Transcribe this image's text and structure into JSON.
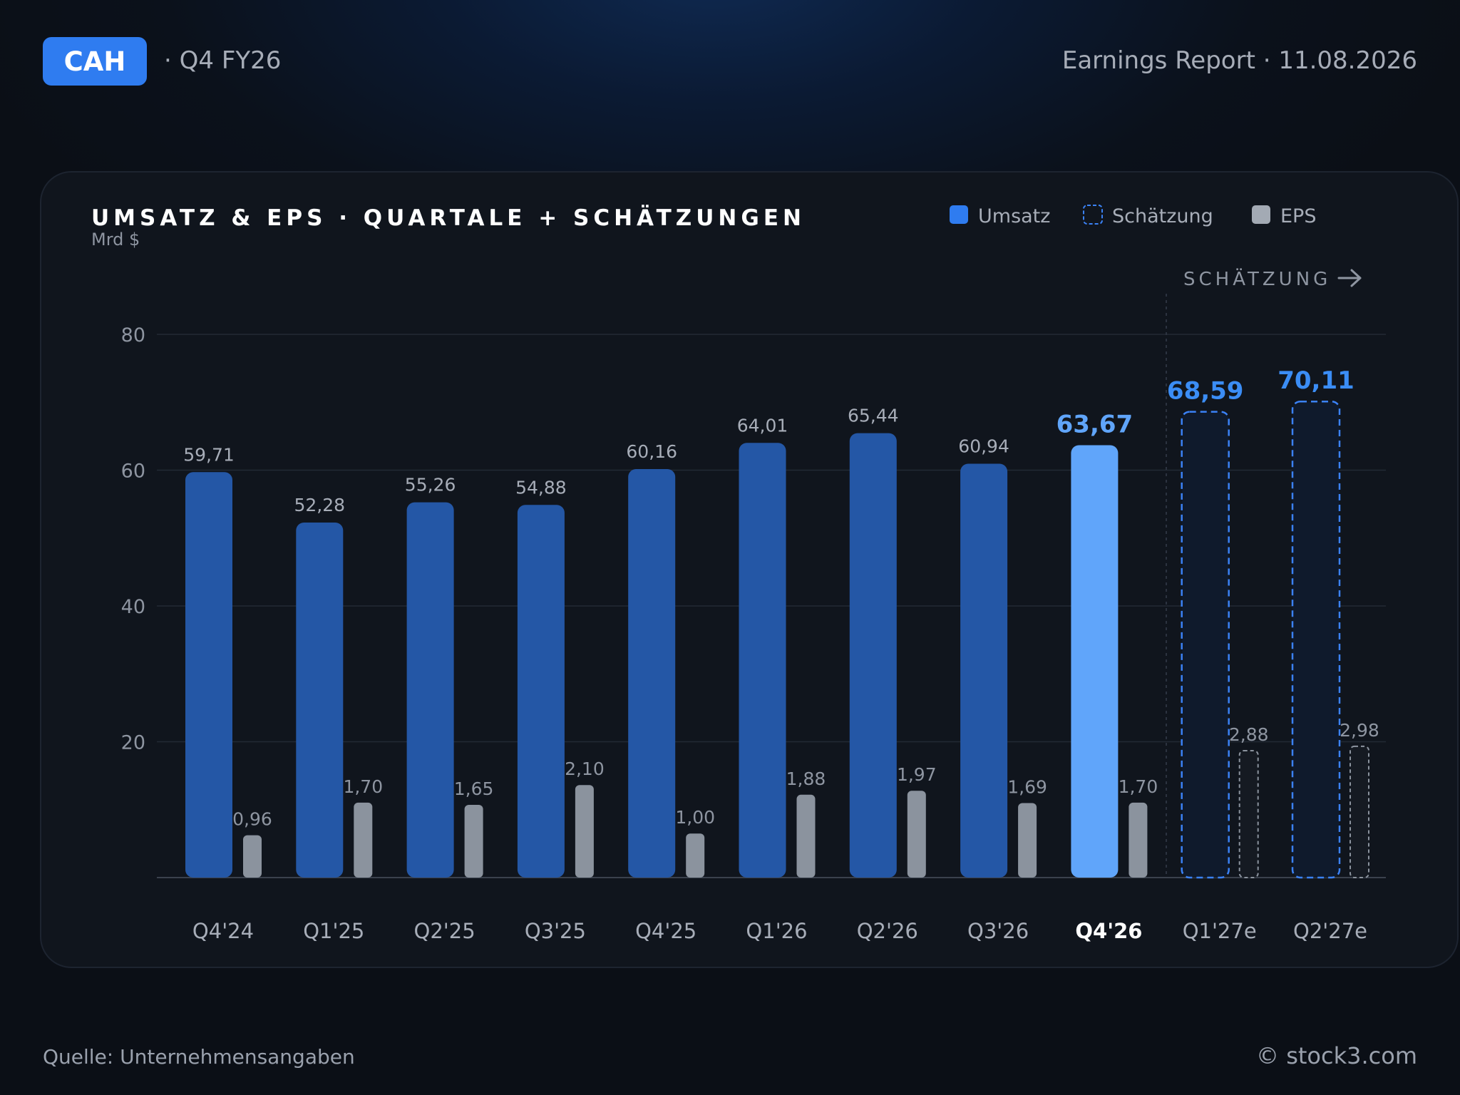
{
  "header": {
    "ticker": "CAH",
    "period": "· Q4 FY26",
    "report": "Earnings Report · 11.08.2026"
  },
  "footer": {
    "source": "Quelle: Unternehmensangaben",
    "brand": "© stock3.com"
  },
  "colors": {
    "revenue": "#2457a6",
    "revenue_highlight": "#60a5fa",
    "estimate_border": "#3b82f6",
    "eps": "#8b939e",
    "estimate_label": "#3b8df5"
  },
  "chart_data": {
    "type": "bar",
    "title": "UMSATZ & EPS · QUARTALE + SCHÄTZUNGEN",
    "ylabel": "Mrd $",
    "ylim": [
      0,
      80
    ],
    "yticks": [
      "20",
      "40",
      "60",
      "80"
    ],
    "grid": true,
    "legend_position": "top-right",
    "legend": [
      "Umsatz",
      "Schätzung",
      "EPS"
    ],
    "estimate_marker": "SCHÄTZUNG",
    "highlight_category": "Q4'26",
    "categories": [
      "Q4'24",
      "Q1'25",
      "Q2'25",
      "Q3'25",
      "Q4'25",
      "Q1'26",
      "Q2'26",
      "Q3'26",
      "Q4'26",
      "Q1'27e",
      "Q2'27e"
    ],
    "estimated": [
      false,
      false,
      false,
      false,
      false,
      false,
      false,
      false,
      false,
      true,
      true
    ],
    "series": [
      {
        "name": "Umsatz",
        "values": [
          59.71,
          52.28,
          55.26,
          54.88,
          60.16,
          64.01,
          65.44,
          60.94,
          63.67,
          68.59,
          70.11
        ],
        "labels": [
          "59,71",
          "52,28",
          "55,26",
          "54,88",
          "60,16",
          "64,01",
          "65,44",
          "60,94",
          "63,67",
          "68,59",
          "70,11"
        ]
      },
      {
        "name": "EPS",
        "values": [
          0.96,
          1.7,
          1.65,
          2.1,
          1.0,
          1.88,
          1.97,
          1.69,
          1.7,
          2.88,
          2.98
        ],
        "labels": [
          "0,96",
          "1,70",
          "1,65",
          "2,10",
          "1,00",
          "1,88",
          "1,97",
          "1,69",
          "1,70",
          "2,88",
          "2,98"
        ]
      }
    ]
  }
}
